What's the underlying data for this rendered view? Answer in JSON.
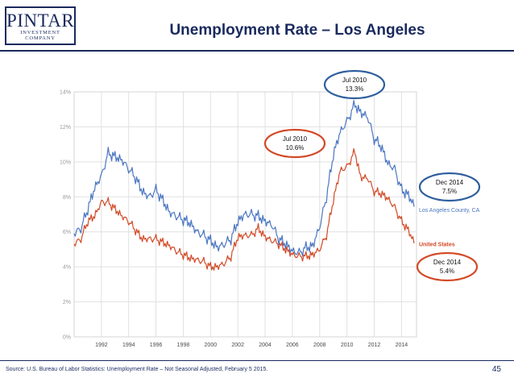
{
  "header": {
    "logo_main": "PINTAR",
    "logo_sub": "INVESTMENT COMPANY",
    "title": "Unemployment Rate – Los Angeles"
  },
  "footer": {
    "source": "Source: U.S. Bureau of Labor Statistics: Unemployment Rate – Not Seasonal Adjusted, February 5 2015.",
    "page_number": "45"
  },
  "callouts": [
    {
      "line1": "Jul 2010",
      "line2": "13.3%",
      "color": "#2f5f9e"
    },
    {
      "line1": "Jul 2010",
      "line2": "10.6%",
      "color": "#d24a27"
    },
    {
      "line1": "Dec 2014",
      "line2": "7.5%",
      "color": "#2f5f9e"
    },
    {
      "line1": "Dec 2014",
      "line2": "5.4%",
      "color": "#d24a27"
    }
  ],
  "chart_data": {
    "type": "line",
    "title": "",
    "xlabel": "",
    "ylabel": "",
    "xlim": [
      1990.0,
      2015.1
    ],
    "ylim": [
      0,
      14
    ],
    "grid": true,
    "x_ticks": [
      "1992",
      "1994",
      "1996",
      "1998",
      "2000",
      "2002",
      "2004",
      "2006",
      "2008",
      "2010",
      "2012",
      "2014"
    ],
    "y_ticks": [
      "0%",
      "2%",
      "4%",
      "6%",
      "8%",
      "10%",
      "12%",
      "14%"
    ],
    "series": [
      {
        "name": "Los Angeles County, CA",
        "color": "#4a76c1",
        "points": [
          [
            1990.0,
            5.9
          ],
          [
            1990.5,
            6.2
          ],
          [
            1991.0,
            7.3
          ],
          [
            1991.5,
            8.5
          ],
          [
            1992.0,
            9.2
          ],
          [
            1992.5,
            10.5
          ],
          [
            1993.0,
            10.3
          ],
          [
            1993.5,
            10.1
          ],
          [
            1994.0,
            9.6
          ],
          [
            1994.5,
            9.1
          ],
          [
            1995.0,
            8.3
          ],
          [
            1995.5,
            8.0
          ],
          [
            1996.0,
            8.4
          ],
          [
            1996.5,
            7.8
          ],
          [
            1997.0,
            7.1
          ],
          [
            1997.5,
            6.9
          ],
          [
            1998.0,
            6.7
          ],
          [
            1998.5,
            6.5
          ],
          [
            1999.0,
            6.0
          ],
          [
            1999.5,
            5.8
          ],
          [
            2000.0,
            5.5
          ],
          [
            2000.5,
            5.1
          ],
          [
            2001.0,
            5.3
          ],
          [
            2001.5,
            5.6
          ],
          [
            2002.0,
            6.6
          ],
          [
            2002.5,
            7.0
          ],
          [
            2003.0,
            7.0
          ],
          [
            2003.5,
            6.9
          ],
          [
            2004.0,
            6.6
          ],
          [
            2004.5,
            6.4
          ],
          [
            2005.0,
            5.6
          ],
          [
            2005.5,
            5.3
          ],
          [
            2006.0,
            4.9
          ],
          [
            2006.5,
            4.8
          ],
          [
            2007.0,
            5.1
          ],
          [
            2007.5,
            5.2
          ],
          [
            2008.0,
            6.3
          ],
          [
            2008.5,
            8.0
          ],
          [
            2009.0,
            10.4
          ],
          [
            2009.5,
            11.7
          ],
          [
            2010.0,
            12.3
          ],
          [
            2010.58,
            13.3
          ],
          [
            2011.0,
            12.8
          ],
          [
            2011.5,
            12.6
          ],
          [
            2012.0,
            11.3
          ],
          [
            2012.5,
            10.9
          ],
          [
            2013.0,
            9.9
          ],
          [
            2013.5,
            9.6
          ],
          [
            2014.0,
            8.4
          ],
          [
            2014.5,
            8.1
          ],
          [
            2014.92,
            7.5
          ]
        ]
      },
      {
        "name": "United States",
        "color": "#d24a27",
        "points": [
          [
            1990.0,
            5.3
          ],
          [
            1990.5,
            5.6
          ],
          [
            1991.0,
            6.6
          ],
          [
            1991.5,
            6.9
          ],
          [
            1992.0,
            7.7
          ],
          [
            1992.5,
            7.7
          ],
          [
            1993.0,
            7.3
          ],
          [
            1993.5,
            6.9
          ],
          [
            1994.0,
            6.6
          ],
          [
            1994.5,
            6.1
          ],
          [
            1995.0,
            5.6
          ],
          [
            1995.5,
            5.6
          ],
          [
            1996.0,
            5.6
          ],
          [
            1996.5,
            5.4
          ],
          [
            1997.0,
            5.2
          ],
          [
            1997.5,
            4.9
          ],
          [
            1998.0,
            4.7
          ],
          [
            1998.5,
            4.5
          ],
          [
            1999.0,
            4.4
          ],
          [
            1999.5,
            4.3
          ],
          [
            2000.0,
            4.0
          ],
          [
            2000.5,
            4.0
          ],
          [
            2001.0,
            4.2
          ],
          [
            2001.5,
            4.6
          ],
          [
            2002.0,
            5.7
          ],
          [
            2002.5,
            5.8
          ],
          [
            2003.0,
            5.8
          ],
          [
            2003.5,
            6.2
          ],
          [
            2004.0,
            5.7
          ],
          [
            2004.5,
            5.5
          ],
          [
            2005.0,
            5.3
          ],
          [
            2005.5,
            5.0
          ],
          [
            2006.0,
            4.7
          ],
          [
            2006.5,
            4.6
          ],
          [
            2007.0,
            4.6
          ],
          [
            2007.5,
            4.7
          ],
          [
            2008.0,
            5.0
          ],
          [
            2008.5,
            5.8
          ],
          [
            2009.0,
            7.8
          ],
          [
            2009.5,
            9.5
          ],
          [
            2010.0,
            9.7
          ],
          [
            2010.58,
            10.6
          ],
          [
            2011.0,
            9.1
          ],
          [
            2011.5,
            9.1
          ],
          [
            2012.0,
            8.3
          ],
          [
            2012.5,
            8.2
          ],
          [
            2013.0,
            7.9
          ],
          [
            2013.5,
            7.4
          ],
          [
            2014.0,
            6.6
          ],
          [
            2014.5,
            6.1
          ],
          [
            2014.92,
            5.4
          ]
        ]
      }
    ]
  }
}
